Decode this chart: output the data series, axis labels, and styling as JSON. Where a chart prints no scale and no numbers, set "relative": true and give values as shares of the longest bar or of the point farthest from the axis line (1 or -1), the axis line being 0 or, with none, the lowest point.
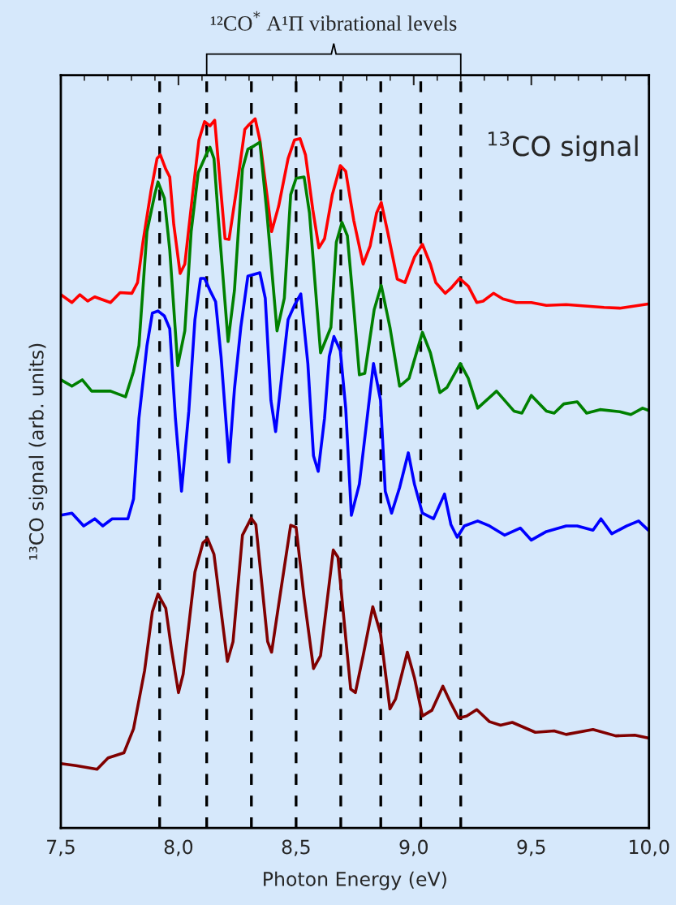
{
  "chart_data": {
    "type": "line",
    "relative": true,
    "annotations": [
      "¹²CO$^{*}$ A¹Π vibrational levels",
      "$^{13}$CO signal"
    ],
    "xlabel": "Photon Energy (eV)",
    "ylabel": "¹³CO signal (arb. units)",
    "xlim": [
      7.5,
      10.0
    ],
    "xticks": [
      {
        "value": 7.5,
        "label": "7,5"
      },
      {
        "value": 8.0,
        "label": "8,0"
      },
      {
        "value": 8.5,
        "label": "8,5"
      },
      {
        "value": 9.0,
        "label": "9,0"
      },
      {
        "value": 9.5,
        "label": "9,5"
      },
      {
        "value": 10.0,
        "label": "10,0"
      }
    ],
    "tick_labels": "x",
    "grid": false,
    "legend": false,
    "line_style": "solid",
    "marker": "none",
    "ref_lines": [
      {
        "axis": "x",
        "value": 7.92,
        "color": "#000000",
        "line_style": "dashed"
      },
      {
        "axis": "x",
        "value": 8.12,
        "color": "#000000",
        "line_style": "dashed"
      },
      {
        "axis": "x",
        "value": 8.31,
        "color": "#000000",
        "line_style": "dashed"
      },
      {
        "axis": "x",
        "value": 8.5,
        "color": "#000000",
        "line_style": "dashed"
      },
      {
        "axis": "x",
        "value": 8.69,
        "color": "#000000",
        "line_style": "dashed"
      },
      {
        "axis": "x",
        "value": 8.86,
        "color": "#000000",
        "line_style": "dashed"
      },
      {
        "axis": "x",
        "value": 9.03,
        "color": "#000000",
        "line_style": "dashed"
      },
      {
        "axis": "x",
        "value": 9.2,
        "color": "#000000",
        "line_style": "dashed"
      }
    ],
    "series": [
      {
        "color": "#ff0000",
        "x": [
          7.5,
          7.547,
          7.581,
          7.614,
          7.644,
          7.711,
          7.752,
          7.802,
          7.826,
          7.849,
          7.883,
          7.909,
          7.923,
          7.946,
          7.963,
          7.98,
          8.007,
          8.027,
          8.06,
          8.087,
          8.111,
          8.134,
          8.154,
          8.175,
          8.198,
          8.215,
          8.248,
          8.282,
          8.295,
          8.326,
          8.346,
          8.376,
          8.396,
          8.426,
          8.466,
          8.493,
          8.517,
          8.54,
          8.571,
          8.597,
          8.621,
          8.654,
          8.688,
          8.711,
          8.745,
          8.785,
          8.815,
          8.842,
          8.862,
          8.889,
          8.93,
          8.963,
          9.003,
          9.037,
          9.071,
          9.094,
          9.134,
          9.158,
          9.195,
          9.232,
          9.268,
          9.295,
          9.339,
          9.379,
          9.436,
          9.5,
          9.564,
          9.648,
          9.728,
          9.809,
          9.876,
          9.94,
          9.997
        ],
        "values": [
          0.752,
          0.741,
          0.752,
          0.743,
          0.749,
          0.741,
          0.755,
          0.754,
          0.769,
          0.826,
          0.898,
          0.944,
          0.949,
          0.929,
          0.918,
          0.851,
          0.782,
          0.795,
          0.893,
          0.97,
          0.996,
          0.99,
          0.998,
          0.918,
          0.831,
          0.83,
          0.903,
          0.985,
          0.99,
          1.0,
          0.97,
          0.893,
          0.841,
          0.877,
          0.944,
          0.97,
          0.972,
          0.949,
          0.872,
          0.818,
          0.831,
          0.893,
          0.934,
          0.926,
          0.857,
          0.795,
          0.821,
          0.867,
          0.882,
          0.841,
          0.774,
          0.769,
          0.805,
          0.823,
          0.795,
          0.769,
          0.754,
          0.761,
          0.775,
          0.764,
          0.741,
          0.743,
          0.754,
          0.746,
          0.741,
          0.741,
          0.737,
          0.738,
          0.736,
          0.734,
          0.733,
          0.736,
          0.739
        ]
      },
      {
        "color": "#008000",
        "x": [
          7.5,
          7.547,
          7.591,
          7.631,
          7.711,
          7.775,
          7.809,
          7.832,
          7.866,
          7.899,
          7.913,
          7.94,
          7.963,
          7.997,
          8.027,
          8.054,
          8.084,
          8.117,
          8.134,
          8.151,
          8.168,
          8.211,
          8.238,
          8.272,
          8.295,
          8.322,
          8.346,
          8.376,
          8.419,
          8.45,
          8.477,
          8.5,
          8.534,
          8.557,
          8.604,
          8.648,
          8.671,
          8.695,
          8.718,
          8.745,
          8.769,
          8.792,
          8.832,
          8.862,
          8.899,
          8.94,
          8.98,
          9.037,
          9.071,
          9.111,
          9.141,
          9.198,
          9.232,
          9.272,
          9.352,
          9.426,
          9.46,
          9.5,
          9.564,
          9.597,
          9.638,
          9.695,
          9.735,
          9.792,
          9.876,
          9.923,
          9.973,
          9.997
        ],
        "values": [
          0.632,
          0.623,
          0.632,
          0.616,
          0.616,
          0.608,
          0.644,
          0.68,
          0.841,
          0.893,
          0.911,
          0.888,
          0.815,
          0.652,
          0.701,
          0.841,
          0.924,
          0.949,
          0.96,
          0.944,
          0.867,
          0.686,
          0.758,
          0.929,
          0.957,
          0.962,
          0.967,
          0.867,
          0.701,
          0.747,
          0.893,
          0.916,
          0.918,
          0.867,
          0.67,
          0.706,
          0.826,
          0.854,
          0.835,
          0.734,
          0.639,
          0.641,
          0.731,
          0.765,
          0.706,
          0.623,
          0.634,
          0.699,
          0.67,
          0.614,
          0.621,
          0.655,
          0.634,
          0.592,
          0.616,
          0.588,
          0.585,
          0.61,
          0.588,
          0.585,
          0.598,
          0.601,
          0.585,
          0.59,
          0.587,
          0.583,
          0.592,
          0.589
        ]
      },
      {
        "color": "#0000ff",
        "x": [
          7.5,
          7.547,
          7.597,
          7.644,
          7.678,
          7.718,
          7.785,
          7.809,
          7.832,
          7.866,
          7.889,
          7.913,
          7.94,
          7.963,
          7.987,
          8.013,
          8.044,
          8.07,
          8.094,
          8.111,
          8.134,
          8.158,
          8.181,
          8.215,
          8.238,
          8.265,
          8.295,
          8.346,
          8.369,
          8.393,
          8.413,
          8.436,
          8.466,
          8.493,
          8.52,
          8.55,
          8.574,
          8.594,
          8.621,
          8.641,
          8.661,
          8.688,
          8.711,
          8.735,
          8.769,
          8.802,
          8.829,
          8.859,
          8.879,
          8.906,
          8.94,
          8.977,
          9.003,
          9.037,
          9.084,
          9.131,
          9.158,
          9.185,
          9.215,
          9.272,
          9.322,
          9.386,
          9.453,
          9.5,
          9.564,
          9.648,
          9.695,
          9.762,
          9.796,
          9.842,
          9.906,
          9.956,
          9.997
        ],
        "values": [
          0.441,
          0.444,
          0.426,
          0.436,
          0.426,
          0.436,
          0.436,
          0.464,
          0.578,
          0.68,
          0.726,
          0.729,
          0.722,
          0.704,
          0.578,
          0.475,
          0.588,
          0.717,
          0.775,
          0.775,
          0.758,
          0.742,
          0.665,
          0.516,
          0.619,
          0.706,
          0.778,
          0.783,
          0.747,
          0.603,
          0.559,
          0.628,
          0.717,
          0.737,
          0.753,
          0.655,
          0.525,
          0.503,
          0.578,
          0.665,
          0.693,
          0.673,
          0.592,
          0.441,
          0.485,
          0.578,
          0.655,
          0.603,
          0.475,
          0.444,
          0.48,
          0.529,
          0.485,
          0.444,
          0.436,
          0.471,
          0.428,
          0.41,
          0.426,
          0.433,
          0.426,
          0.413,
          0.423,
          0.406,
          0.418,
          0.426,
          0.426,
          0.42,
          0.436,
          0.415,
          0.426,
          0.433,
          0.42
        ]
      },
      {
        "color": "#800000",
        "x": [
          7.5,
          7.564,
          7.654,
          7.701,
          7.768,
          7.809,
          7.856,
          7.889,
          7.913,
          7.946,
          7.97,
          8.0,
          8.02,
          8.07,
          8.104,
          8.124,
          8.151,
          8.208,
          8.232,
          8.272,
          8.309,
          8.329,
          8.379,
          8.396,
          8.426,
          8.477,
          8.5,
          8.534,
          8.574,
          8.604,
          8.658,
          8.678,
          8.732,
          8.752,
          8.785,
          8.826,
          8.859,
          8.899,
          8.923,
          8.973,
          9.003,
          9.037,
          9.077,
          9.124,
          9.158,
          9.191,
          9.225,
          9.268,
          9.322,
          9.369,
          9.419,
          9.517,
          9.597,
          9.648,
          9.762,
          9.859,
          9.94,
          9.997
        ],
        "values": [
          0.091,
          0.088,
          0.083,
          0.099,
          0.106,
          0.14,
          0.222,
          0.305,
          0.33,
          0.31,
          0.253,
          0.191,
          0.217,
          0.361,
          0.402,
          0.408,
          0.386,
          0.235,
          0.263,
          0.413,
          0.437,
          0.428,
          0.263,
          0.248,
          0.315,
          0.427,
          0.424,
          0.325,
          0.225,
          0.243,
          0.392,
          0.382,
          0.196,
          0.191,
          0.243,
          0.312,
          0.274,
          0.168,
          0.182,
          0.248,
          0.212,
          0.158,
          0.166,
          0.2,
          0.176,
          0.155,
          0.158,
          0.167,
          0.15,
          0.145,
          0.149,
          0.135,
          0.137,
          0.132,
          0.139,
          0.13,
          0.131,
          0.127
        ]
      }
    ]
  }
}
